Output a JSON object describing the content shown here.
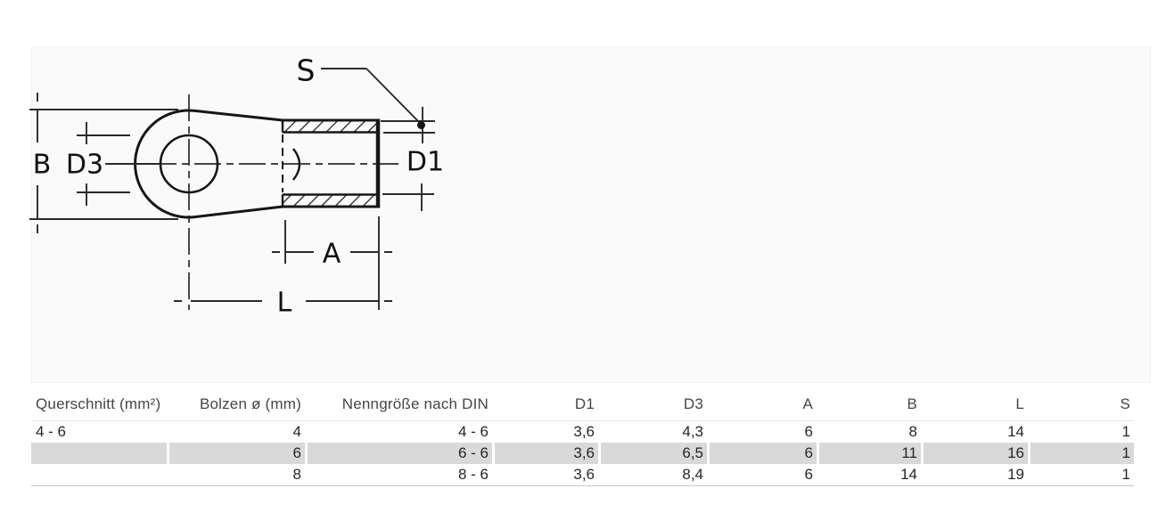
{
  "drawing": {
    "labels": {
      "s": "S",
      "b": "B",
      "d3": "D3",
      "d1": "D1",
      "a": "A",
      "l": "L"
    }
  },
  "table": {
    "headers": [
      "Querschnitt (mm²)",
      "Bolzen ø (mm)",
      "Nenngröße nach DIN",
      "D1",
      "D3",
      "A",
      "B",
      "L",
      "S"
    ],
    "rows": [
      [
        "4 - 6",
        "4",
        "4 - 6",
        "3,6",
        "4,3",
        "6",
        "8",
        "14",
        "1"
      ],
      [
        "",
        "6",
        "6 - 6",
        "3,6",
        "6,5",
        "6",
        "11",
        "16",
        "1"
      ],
      [
        "",
        "8",
        "8 - 6",
        "3,6",
        "8,4",
        "6",
        "14",
        "19",
        "1"
      ]
    ],
    "highlighted_row_index": 1,
    "colors": {
      "row_highlight": "#d9d9d9"
    }
  }
}
